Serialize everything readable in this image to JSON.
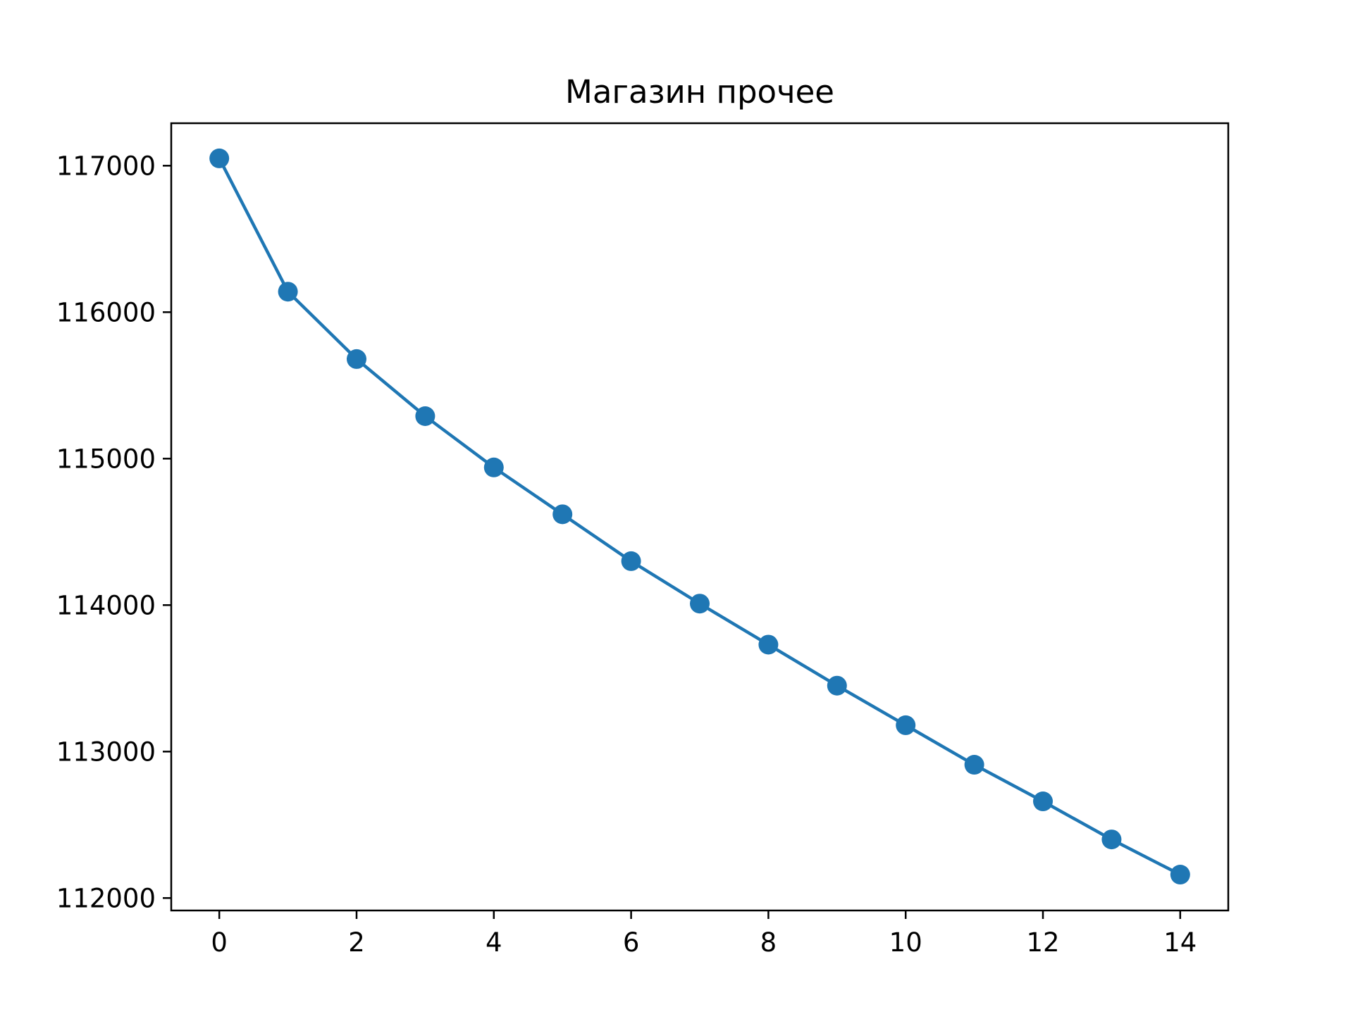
{
  "chart_data": {
    "type": "line",
    "title": "Магазин прочее",
    "xlabel": "",
    "ylabel": "",
    "x": [
      0,
      1,
      2,
      3,
      4,
      5,
      6,
      7,
      8,
      9,
      10,
      11,
      12,
      13,
      14
    ],
    "series": [
      {
        "values": [
          117050,
          116140,
          115680,
          115290,
          114940,
          114620,
          114300,
          114010,
          113730,
          113450,
          113180,
          112910,
          112660,
          112400,
          112160
        ]
      }
    ],
    "xlim": [
      -0.7,
      14.7
    ],
    "ylim": [
      111915,
      117290
    ],
    "xticks": [
      0,
      2,
      4,
      6,
      8,
      10,
      12,
      14
    ],
    "yticks": [
      112000,
      113000,
      114000,
      115000,
      116000,
      117000
    ],
    "markers": true,
    "grid": false,
    "colors": {
      "series": "#1f77b4",
      "axes": "#000000"
    }
  }
}
